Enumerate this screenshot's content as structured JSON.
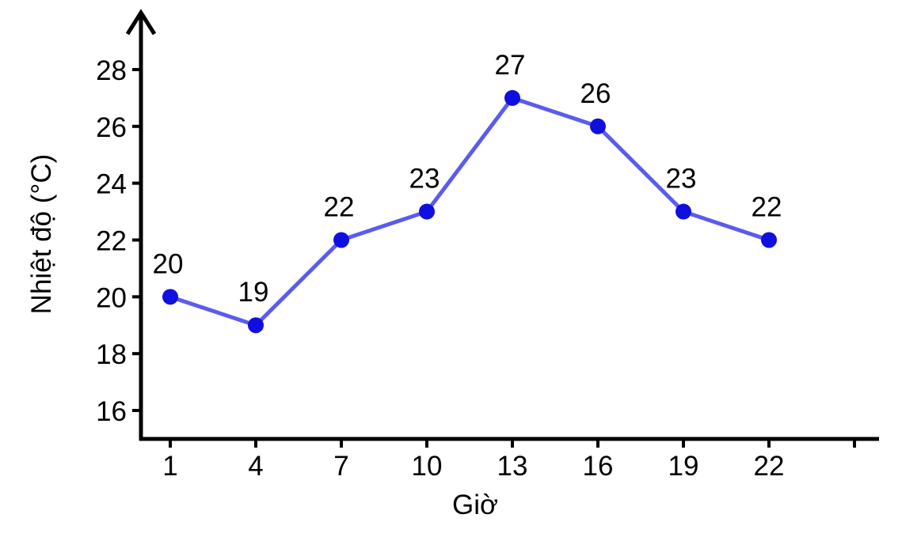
{
  "chart_data": {
    "type": "line",
    "x": [
      1,
      4,
      7,
      10,
      13,
      16,
      19,
      22
    ],
    "y": [
      20,
      19,
      22,
      23,
      27,
      26,
      23,
      22
    ],
    "point_labels": [
      "20",
      "19",
      "22",
      "23",
      "27",
      "26",
      "23",
      "22"
    ],
    "xlabel": "Giờ",
    "ylabel": "Nhiệt độ (°C)",
    "x_ticks": [
      1,
      4,
      7,
      10,
      13,
      16,
      19,
      22
    ],
    "x_ticks_unlabeled": [
      25
    ],
    "y_ticks": [
      16,
      18,
      20,
      22,
      24,
      26,
      28
    ],
    "xlim": [
      0,
      26
    ],
    "ylim": [
      15,
      29.5
    ],
    "grid": false,
    "legend": "none",
    "colors": {
      "line": "#5b5bef",
      "marker": "#0f0fdf",
      "axis": "#000000",
      "text": "#000000",
      "background": "#ffffff"
    }
  }
}
